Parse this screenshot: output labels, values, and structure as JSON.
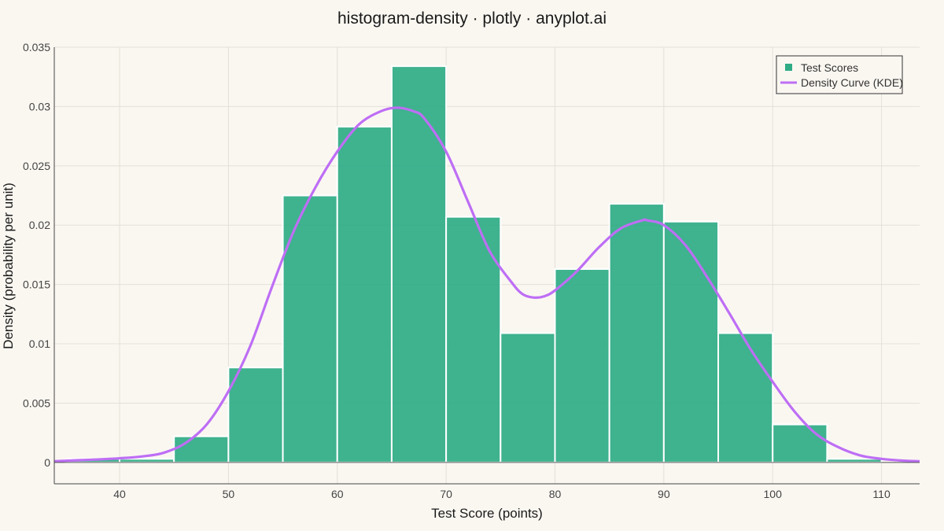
{
  "colors": {
    "background": "#faf7f1",
    "bar_fill": "#2fab85",
    "bar_edge": "#ffffff",
    "kde_line": "#be6ef5",
    "grid": "#e3e0d8",
    "axis": "#444444"
  },
  "chart_data": {
    "type": "bar",
    "subtype": "histogram-with-kde",
    "title": "histogram-density · plotly · anyplot.ai",
    "xlabel": "Test Score (points)",
    "ylabel": "Density (probability per unit)",
    "xlim": [
      34,
      113.5
    ],
    "ylim": [
      -0.0018,
      0.035
    ],
    "x_ticks": [
      40,
      50,
      60,
      70,
      80,
      90,
      100,
      110
    ],
    "y_ticks": [
      0,
      0.005,
      0.01,
      0.015,
      0.02,
      0.025,
      0.03,
      0.035
    ],
    "y_tick_labels": [
      "0",
      "0.005",
      "0.01",
      "0.015",
      "0.02",
      "0.025",
      "0.03",
      "0.035"
    ],
    "grid": true,
    "legend_position": "top-right",
    "bins": [
      {
        "x0": 35,
        "x1": 40,
        "density": 0.0003
      },
      {
        "x0": 40,
        "x1": 45,
        "density": 0.0003
      },
      {
        "x0": 45,
        "x1": 50,
        "density": 0.0022
      },
      {
        "x0": 50,
        "x1": 55,
        "density": 0.008
      },
      {
        "x0": 55,
        "x1": 60,
        "density": 0.0225
      },
      {
        "x0": 60,
        "x1": 65,
        "density": 0.0283
      },
      {
        "x0": 65,
        "x1": 70,
        "density": 0.0334
      },
      {
        "x0": 70,
        "x1": 75,
        "density": 0.0207
      },
      {
        "x0": 75,
        "x1": 80,
        "density": 0.0109
      },
      {
        "x0": 80,
        "x1": 85,
        "density": 0.0163
      },
      {
        "x0": 85,
        "x1": 90,
        "density": 0.0218
      },
      {
        "x0": 90,
        "x1": 95,
        "density": 0.0203
      },
      {
        "x0": 95,
        "x1": 100,
        "density": 0.0109
      },
      {
        "x0": 100,
        "x1": 105,
        "density": 0.0032
      },
      {
        "x0": 105,
        "x1": 110,
        "density": 0.0003
      }
    ],
    "kde": {
      "x": [
        34,
        36,
        38,
        40,
        42,
        44,
        46,
        48,
        50,
        52,
        54,
        56,
        58,
        60,
        62,
        64,
        65.5,
        67,
        68,
        70,
        72,
        74,
        76,
        77,
        78,
        79,
        80,
        82,
        84,
        86,
        88,
        88.5,
        90,
        92,
        94,
        96,
        98,
        100,
        102,
        104,
        106,
        108,
        110,
        112,
        113.5
      ],
      "y": [
        0.0001,
        0.00018,
        0.00025,
        0.00035,
        0.0005,
        0.0008,
        0.0016,
        0.0032,
        0.006,
        0.0098,
        0.0148,
        0.0195,
        0.0232,
        0.0262,
        0.0285,
        0.0296,
        0.0299,
        0.0296,
        0.029,
        0.0262,
        0.022,
        0.0178,
        0.0152,
        0.0142,
        0.0139,
        0.014,
        0.0145,
        0.0161,
        0.0181,
        0.0197,
        0.0204,
        0.0204,
        0.02,
        0.0183,
        0.0156,
        0.0126,
        0.0095,
        0.0068,
        0.0043,
        0.0024,
        0.0013,
        0.0006,
        0.0003,
        0.00015,
        0.0001
      ]
    },
    "series": [
      {
        "name": "Test Scores",
        "kind": "histogram"
      },
      {
        "name": "Density Curve (KDE)",
        "kind": "line"
      }
    ]
  }
}
